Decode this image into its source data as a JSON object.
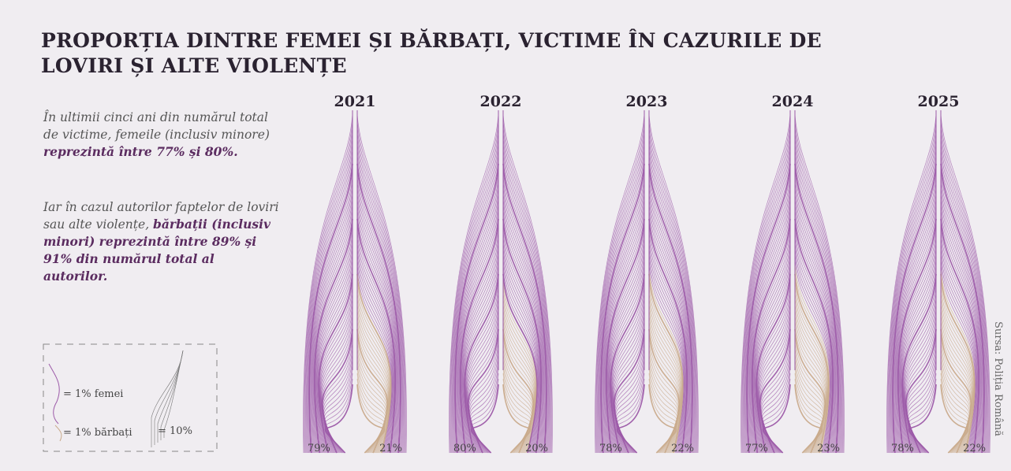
{
  "title": "PROPORȚIA DINTRE FEMEI ȘI BĂRBAȚI, VICTIME ÎN CAZURILE DE LOVIRI ȘI ALTE VIOLENȚE",
  "intro": [
    [
      "În ultimii cinci ani din numărul total de victime, femeile (inclusiv minore) ",
      "reprezintă între 77% și 80%."
    ],
    [
      "Iar în cazul autorilor faptelor de loviri sau alte violențe, ",
      "bărbații (inclusiv minori) reprezintă între 89% și 91% din numărul total al autorilor."
    ]
  ],
  "legend": {
    "women": "= 1% femei",
    "men": "= 1% bărbați",
    "ten": "= 10%"
  },
  "source": "Sursa: Poliția Română",
  "chart_data": {
    "type": "feather",
    "categories": [
      "2021",
      "2022",
      "2023",
      "2024",
      "2025"
    ],
    "series": [
      {
        "color": "#9c5aa8",
        "values": [
          79,
          80,
          78,
          77,
          78
        ],
        "value_labels": [
          "79%",
          "80%",
          "78%",
          "77%",
          "78%"
        ]
      },
      {
        "color": "#c9ab8c",
        "values": [
          21,
          20,
          22,
          23,
          22
        ],
        "value_labels": [
          "21%",
          "20%",
          "22%",
          "23%",
          "22%"
        ]
      }
    ]
  }
}
